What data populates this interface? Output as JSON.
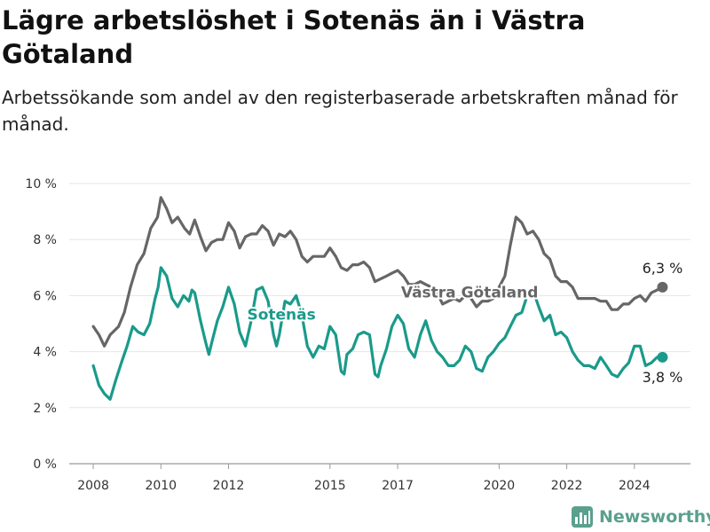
{
  "header": {
    "title": "Lägre arbetslöshet i Sotenäs än i Västra Götaland",
    "subtitle": "Arbetssökande som andel av den registerbaserade arbetskraften månad för månad."
  },
  "brand": {
    "name": "Newsworthy",
    "color": "#5aa08d"
  },
  "chart_data": {
    "type": "line",
    "title": "Lägre arbetslöshet i Sotenäs än i Västra Götaland",
    "subtitle": "Arbetssökande som andel av den registerbaserade arbetskraften månad för månad.",
    "y_unit": "%",
    "ylim": [
      0,
      10
    ],
    "y_ticks": [
      {
        "value": 0,
        "label": "0 %"
      },
      {
        "value": 2,
        "label": "2 %"
      },
      {
        "value": 4,
        "label": "4 %"
      },
      {
        "value": 6,
        "label": "6 %"
      },
      {
        "value": 8,
        "label": "8 %"
      },
      {
        "value": 10,
        "label": "10 %"
      }
    ],
    "x_range": [
      2007.5,
      2025.5
    ],
    "x_ticks": [
      {
        "value": 2008,
        "label": "2008"
      },
      {
        "value": 2010,
        "label": "2010"
      },
      {
        "value": 2012,
        "label": "2012"
      },
      {
        "value": 2015,
        "label": "2015"
      },
      {
        "value": 2017,
        "label": "2017"
      },
      {
        "value": 2020,
        "label": "2020"
      },
      {
        "value": 2022,
        "label": "2022"
      },
      {
        "value": 2024,
        "label": "2024"
      }
    ],
    "grid": "horizontal",
    "series": [
      {
        "name": "Västra Götaland",
        "color": "#666666",
        "end_label": "6,3 %",
        "points": [
          [
            2008.0,
            4.9
          ],
          [
            2008.17,
            4.6
          ],
          [
            2008.33,
            4.2
          ],
          [
            2008.5,
            4.6
          ],
          [
            2008.75,
            4.9
          ],
          [
            2008.92,
            5.4
          ],
          [
            2009.1,
            6.3
          ],
          [
            2009.3,
            7.1
          ],
          [
            2009.5,
            7.5
          ],
          [
            2009.7,
            8.4
          ],
          [
            2009.9,
            8.8
          ],
          [
            2010.0,
            9.5
          ],
          [
            2010.17,
            9.1
          ],
          [
            2010.33,
            8.6
          ],
          [
            2010.5,
            8.8
          ],
          [
            2010.7,
            8.4
          ],
          [
            2010.85,
            8.2
          ],
          [
            2011.0,
            8.7
          ],
          [
            2011.17,
            8.1
          ],
          [
            2011.33,
            7.6
          ],
          [
            2011.5,
            7.9
          ],
          [
            2011.67,
            8.0
          ],
          [
            2011.83,
            8.0
          ],
          [
            2012.0,
            8.6
          ],
          [
            2012.17,
            8.3
          ],
          [
            2012.33,
            7.7
          ],
          [
            2012.5,
            8.1
          ],
          [
            2012.67,
            8.2
          ],
          [
            2012.83,
            8.2
          ],
          [
            2013.0,
            8.5
          ],
          [
            2013.17,
            8.3
          ],
          [
            2013.33,
            7.8
          ],
          [
            2013.5,
            8.2
          ],
          [
            2013.67,
            8.1
          ],
          [
            2013.83,
            8.3
          ],
          [
            2014.0,
            8.0
          ],
          [
            2014.17,
            7.4
          ],
          [
            2014.33,
            7.2
          ],
          [
            2014.5,
            7.4
          ],
          [
            2014.67,
            7.4
          ],
          [
            2014.83,
            7.4
          ],
          [
            2015.0,
            7.7
          ],
          [
            2015.17,
            7.4
          ],
          [
            2015.33,
            7.0
          ],
          [
            2015.5,
            6.9
          ],
          [
            2015.67,
            7.1
          ],
          [
            2015.83,
            7.1
          ],
          [
            2016.0,
            7.2
          ],
          [
            2016.17,
            7.0
          ],
          [
            2016.33,
            6.5
          ],
          [
            2016.5,
            6.6
          ],
          [
            2016.67,
            6.7
          ],
          [
            2016.83,
            6.8
          ],
          [
            2017.0,
            6.9
          ],
          [
            2017.17,
            6.7
          ],
          [
            2017.33,
            6.4
          ],
          [
            2017.5,
            6.4
          ],
          [
            2017.67,
            6.5
          ],
          [
            2017.83,
            6.4
          ],
          [
            2018.0,
            6.3
          ],
          [
            2018.17,
            6.1
          ],
          [
            2018.33,
            5.7
          ],
          [
            2018.5,
            5.8
          ],
          [
            2018.67,
            5.9
          ],
          [
            2018.83,
            5.8
          ],
          [
            2019.0,
            6.0
          ],
          [
            2019.17,
            5.9
          ],
          [
            2019.33,
            5.6
          ],
          [
            2019.5,
            5.8
          ],
          [
            2019.67,
            5.8
          ],
          [
            2019.83,
            5.9
          ],
          [
            2020.0,
            6.3
          ],
          [
            2020.17,
            6.7
          ],
          [
            2020.33,
            7.8
          ],
          [
            2020.5,
            8.8
          ],
          [
            2020.67,
            8.6
          ],
          [
            2020.83,
            8.2
          ],
          [
            2021.0,
            8.3
          ],
          [
            2021.17,
            8.0
          ],
          [
            2021.33,
            7.5
          ],
          [
            2021.5,
            7.3
          ],
          [
            2021.67,
            6.7
          ],
          [
            2021.83,
            6.5
          ],
          [
            2022.0,
            6.5
          ],
          [
            2022.17,
            6.3
          ],
          [
            2022.33,
            5.9
          ],
          [
            2022.5,
            5.9
          ],
          [
            2022.67,
            5.9
          ],
          [
            2022.83,
            5.9
          ],
          [
            2023.0,
            5.8
          ],
          [
            2023.17,
            5.8
          ],
          [
            2023.33,
            5.5
          ],
          [
            2023.5,
            5.5
          ],
          [
            2023.67,
            5.7
          ],
          [
            2023.83,
            5.7
          ],
          [
            2024.0,
            5.9
          ],
          [
            2024.17,
            6.0
          ],
          [
            2024.33,
            5.8
          ],
          [
            2024.5,
            6.1
          ],
          [
            2024.67,
            6.2
          ],
          [
            2024.83,
            6.3
          ]
        ]
      },
      {
        "name": "Sotenäs",
        "color": "#1a9a8a",
        "end_label": "3,8 %",
        "points": [
          [
            2008.0,
            3.5
          ],
          [
            2008.17,
            2.8
          ],
          [
            2008.33,
            2.5
          ],
          [
            2008.5,
            2.3
          ],
          [
            2008.67,
            3.0
          ],
          [
            2008.83,
            3.6
          ],
          [
            2009.0,
            4.2
          ],
          [
            2009.17,
            4.9
          ],
          [
            2009.33,
            4.7
          ],
          [
            2009.5,
            4.6
          ],
          [
            2009.67,
            5.0
          ],
          [
            2009.83,
            5.9
          ],
          [
            2009.92,
            6.3
          ],
          [
            2010.0,
            7.0
          ],
          [
            2010.17,
            6.7
          ],
          [
            2010.33,
            5.9
          ],
          [
            2010.5,
            5.6
          ],
          [
            2010.67,
            6.0
          ],
          [
            2010.83,
            5.8
          ],
          [
            2010.92,
            6.2
          ],
          [
            2011.0,
            6.1
          ],
          [
            2011.17,
            5.1
          ],
          [
            2011.33,
            4.3
          ],
          [
            2011.42,
            3.9
          ],
          [
            2011.5,
            4.3
          ],
          [
            2011.67,
            5.1
          ],
          [
            2011.83,
            5.6
          ],
          [
            2012.0,
            6.3
          ],
          [
            2012.17,
            5.7
          ],
          [
            2012.33,
            4.7
          ],
          [
            2012.5,
            4.2
          ],
          [
            2012.67,
            5.1
          ],
          [
            2012.83,
            6.2
          ],
          [
            2013.0,
            6.3
          ],
          [
            2013.17,
            5.8
          ],
          [
            2013.33,
            4.6
          ],
          [
            2013.42,
            4.2
          ],
          [
            2013.5,
            4.6
          ],
          [
            2013.67,
            5.8
          ],
          [
            2013.83,
            5.7
          ],
          [
            2014.0,
            6.0
          ],
          [
            2014.17,
            5.3
          ],
          [
            2014.33,
            4.2
          ],
          [
            2014.5,
            3.8
          ],
          [
            2014.67,
            4.2
          ],
          [
            2014.83,
            4.1
          ],
          [
            2015.0,
            4.9
          ],
          [
            2015.17,
            4.6
          ],
          [
            2015.33,
            3.3
          ],
          [
            2015.42,
            3.2
          ],
          [
            2015.5,
            3.9
          ],
          [
            2015.67,
            4.1
          ],
          [
            2015.83,
            4.6
          ],
          [
            2016.0,
            4.7
          ],
          [
            2016.17,
            4.6
          ],
          [
            2016.33,
            3.2
          ],
          [
            2016.42,
            3.1
          ],
          [
            2016.5,
            3.5
          ],
          [
            2016.67,
            4.1
          ],
          [
            2016.83,
            4.9
          ],
          [
            2017.0,
            5.3
          ],
          [
            2017.17,
            5.0
          ],
          [
            2017.33,
            4.1
          ],
          [
            2017.5,
            3.8
          ],
          [
            2017.67,
            4.6
          ],
          [
            2017.83,
            5.1
          ],
          [
            2018.0,
            4.4
          ],
          [
            2018.17,
            4.0
          ],
          [
            2018.33,
            3.8
          ],
          [
            2018.5,
            3.5
          ],
          [
            2018.67,
            3.5
          ],
          [
            2018.83,
            3.7
          ],
          [
            2019.0,
            4.2
          ],
          [
            2019.17,
            4.0
          ],
          [
            2019.33,
            3.4
          ],
          [
            2019.5,
            3.3
          ],
          [
            2019.67,
            3.8
          ],
          [
            2019.83,
            4.0
          ],
          [
            2020.0,
            4.3
          ],
          [
            2020.17,
            4.5
          ],
          [
            2020.33,
            4.9
          ],
          [
            2020.5,
            5.3
          ],
          [
            2020.67,
            5.4
          ],
          [
            2020.83,
            6.0
          ],
          [
            2021.0,
            6.2
          ],
          [
            2021.17,
            5.6
          ],
          [
            2021.33,
            5.1
          ],
          [
            2021.5,
            5.3
          ],
          [
            2021.67,
            4.6
          ],
          [
            2021.83,
            4.7
          ],
          [
            2022.0,
            4.5
          ],
          [
            2022.17,
            4.0
          ],
          [
            2022.33,
            3.7
          ],
          [
            2022.5,
            3.5
          ],
          [
            2022.67,
            3.5
          ],
          [
            2022.83,
            3.4
          ],
          [
            2023.0,
            3.8
          ],
          [
            2023.17,
            3.5
          ],
          [
            2023.33,
            3.2
          ],
          [
            2023.5,
            3.1
          ],
          [
            2023.67,
            3.4
          ],
          [
            2023.83,
            3.6
          ],
          [
            2024.0,
            4.2
          ],
          [
            2024.17,
            4.2
          ],
          [
            2024.33,
            3.5
          ],
          [
            2024.5,
            3.6
          ],
          [
            2024.67,
            3.8
          ],
          [
            2024.83,
            3.8
          ]
        ]
      }
    ]
  }
}
